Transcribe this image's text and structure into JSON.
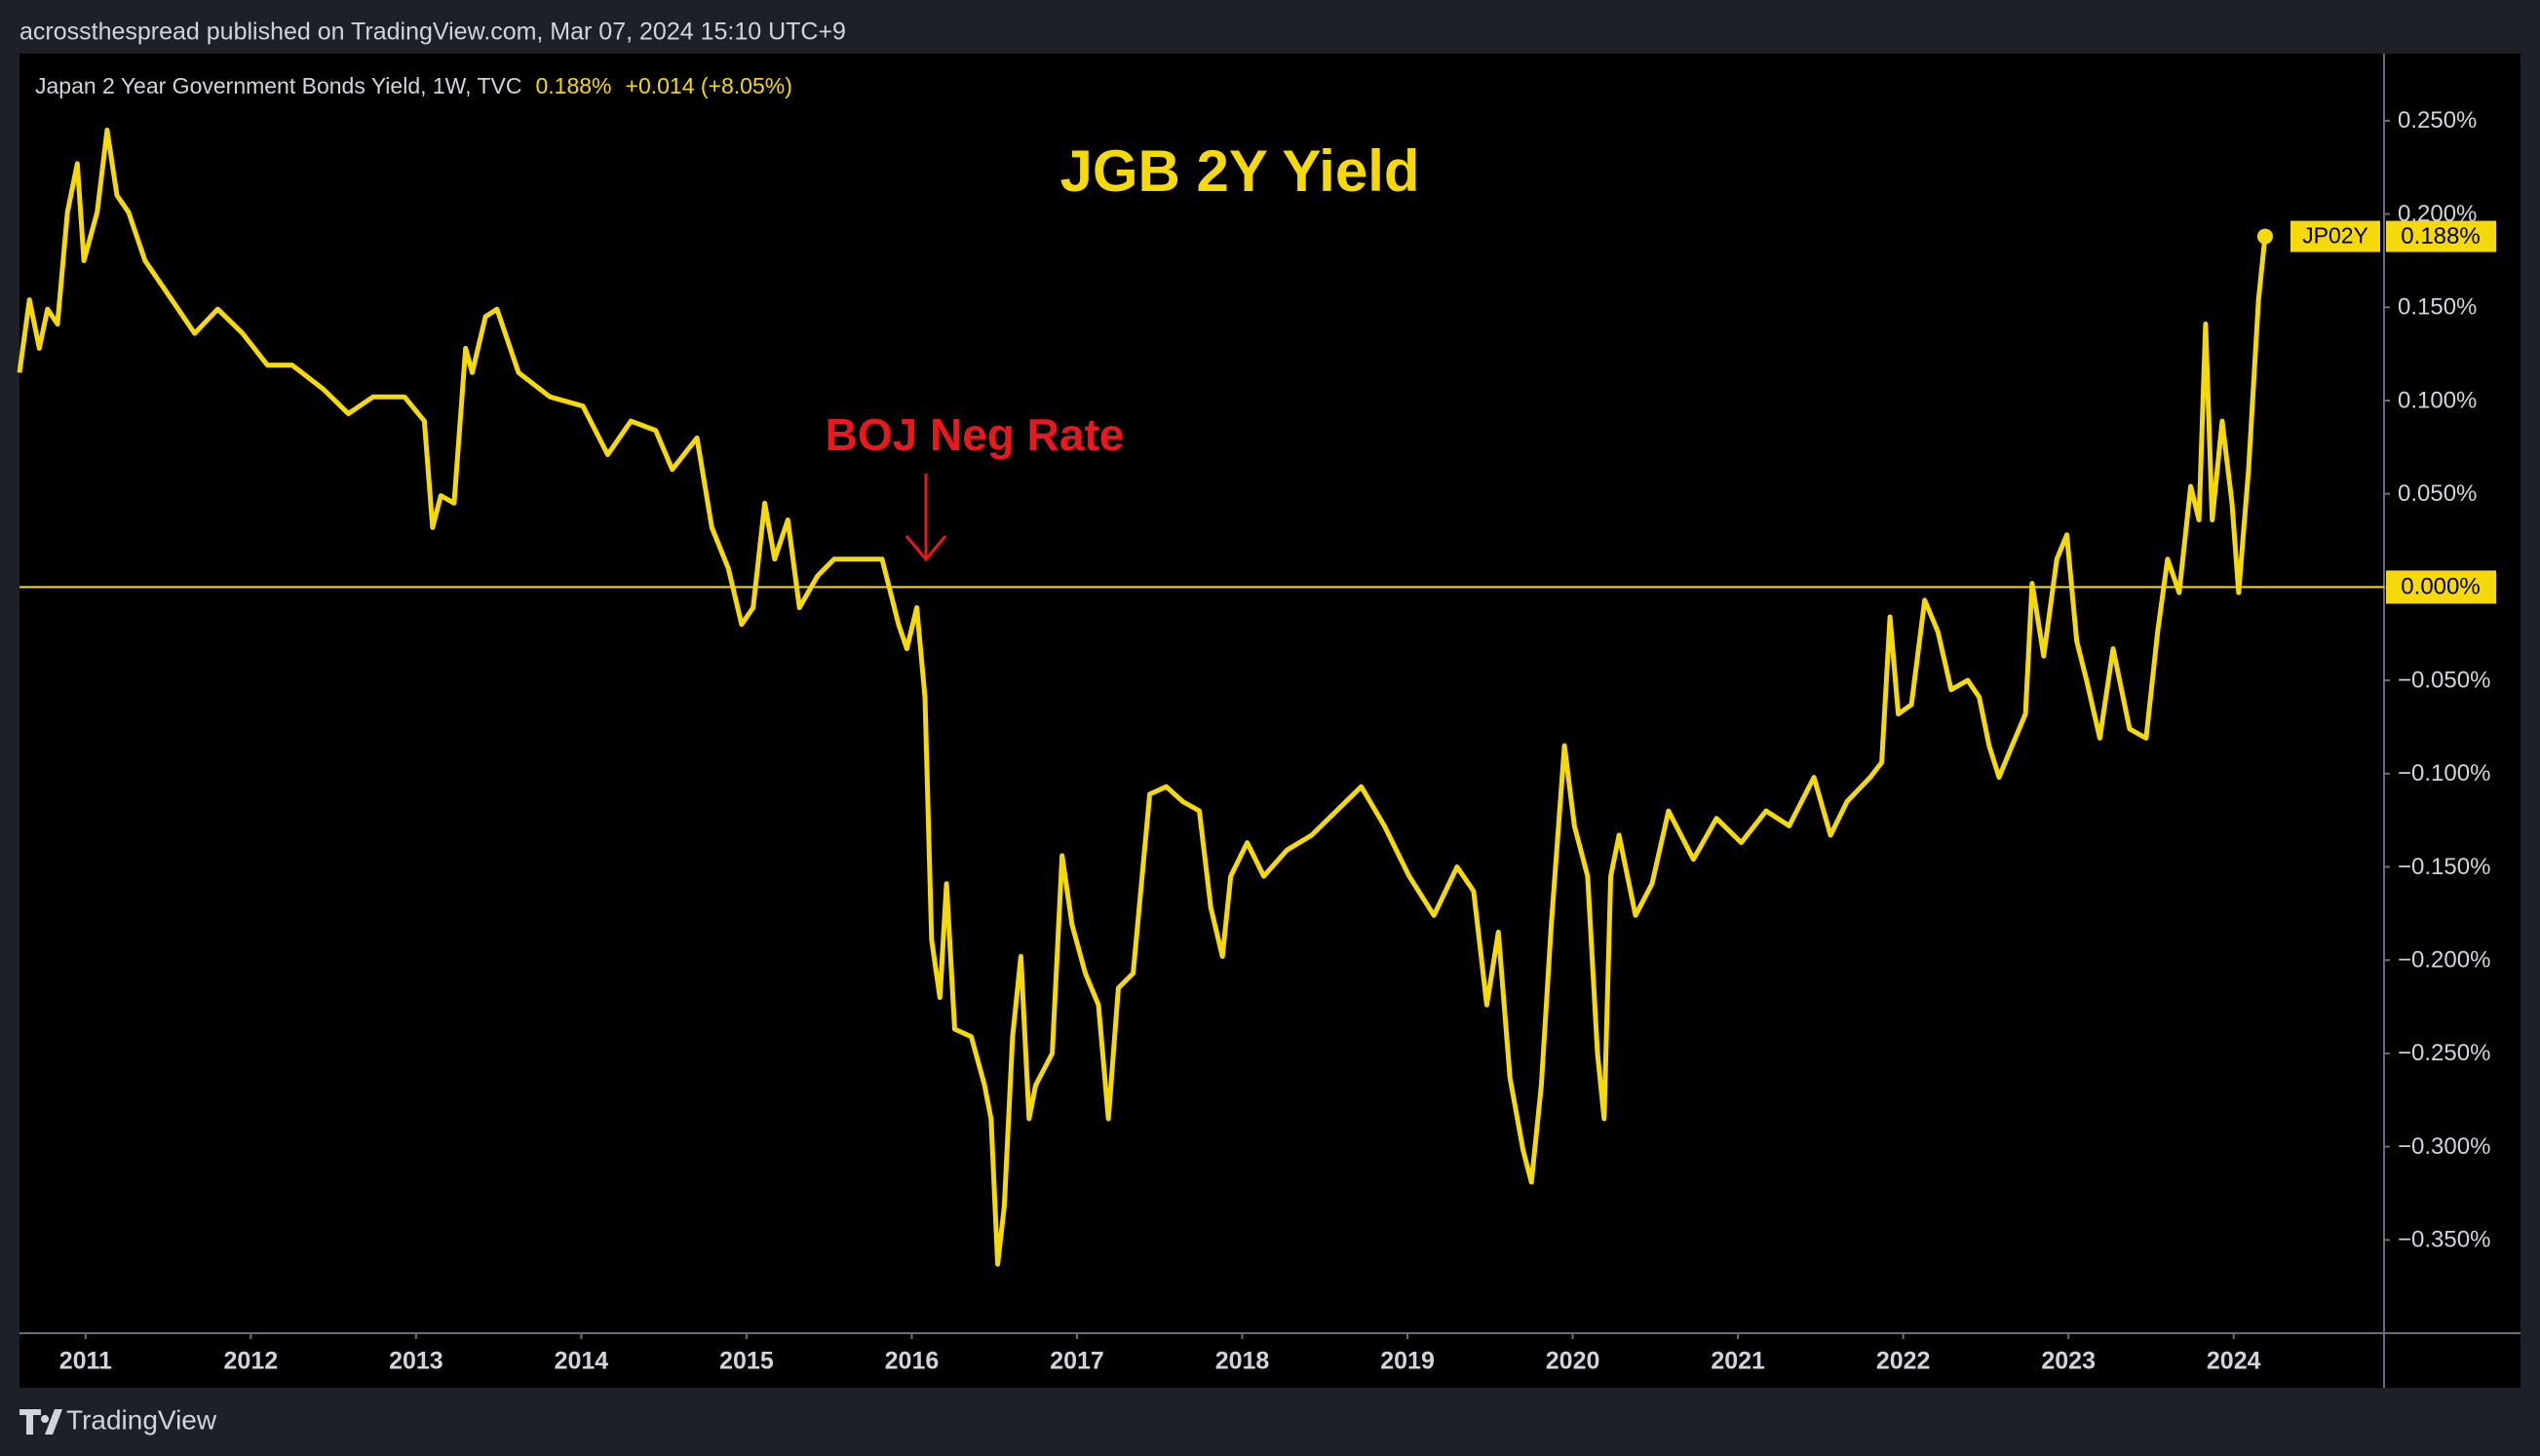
{
  "header": {
    "published": "acrossthespread published on TradingView.com, Mar 07, 2024 15:10 UTC+9",
    "brand": "TradingView"
  },
  "chart_data": {
    "type": "line",
    "title": "JGB 2Y Yield",
    "legend": {
      "name": "Japan 2 Year Government Bonds Yield, 1W, TVC",
      "last": "0.188%",
      "change": "+0.014 (+8.05%)"
    },
    "annotation": "BOJ Neg Rate",
    "price_label": {
      "symbol": "JP02Y",
      "value_label": "0.188%"
    },
    "color": "#f5d90a",
    "hline": 0,
    "x": [
      2010.6,
      2010.66,
      2010.72,
      2010.77,
      2010.83,
      2010.89,
      2010.95,
      2010.99,
      2011.07,
      2011.13,
      2011.19,
      2011.26,
      2011.36,
      2011.46,
      2011.56,
      2011.66,
      2011.8,
      2011.95,
      2012.1,
      2012.25,
      2012.44,
      2012.59,
      2012.74,
      2012.93,
      2013.05,
      2013.1,
      2013.15,
      2013.23,
      2013.3,
      2013.34,
      2013.42,
      2013.49,
      2013.62,
      2013.81,
      2014.01,
      2014.16,
      2014.3,
      2014.45,
      2014.55,
      2014.7,
      2014.79,
      2014.89,
      2014.97,
      2015.04,
      2015.11,
      2015.17,
      2015.25,
      2015.32,
      2015.43,
      2015.53,
      2015.68,
      2015.82,
      2015.92,
      2015.97,
      2016.03,
      2016.08,
      2016.12,
      2016.17,
      2016.21,
      2016.26,
      2016.36,
      2016.44,
      2016.48,
      2016.52,
      2016.56,
      2016.61,
      2016.66,
      2016.71,
      2016.75,
      2016.85,
      2016.91,
      2016.97,
      2017.05,
      2017.13,
      2017.19,
      2017.25,
      2017.34,
      2017.44,
      2017.54,
      2017.64,
      2017.74,
      2017.81,
      2017.88,
      2017.93,
      2018.03,
      2018.13,
      2018.27,
      2018.42,
      2018.57,
      2018.72,
      2018.86,
      2019.01,
      2019.16,
      2019.3,
      2019.4,
      2019.48,
      2019.55,
      2019.62,
      2019.7,
      2019.75,
      2019.81,
      2019.87,
      2019.95,
      2020.01,
      2020.09,
      2020.15,
      2020.19,
      2020.23,
      2020.28,
      2020.38,
      2020.48,
      2020.58,
      2020.73,
      2020.87,
      2021.02,
      2021.17,
      2021.31,
      2021.46,
      2021.56,
      2021.66,
      2021.8,
      2021.87,
      2021.92,
      2021.97,
      2022.05,
      2022.13,
      2022.21,
      2022.29,
      2022.39,
      2022.46,
      2022.52,
      2022.58,
      2022.64,
      2022.74,
      2022.78,
      2022.85,
      2022.93,
      2022.99,
      2023.05,
      2023.11,
      2023.19,
      2023.27,
      2023.37,
      2023.47,
      2023.54,
      2023.6,
      2023.67,
      2023.74,
      2023.79,
      2023.83,
      2023.87,
      2023.93,
      2023.99,
      2024.03,
      2024.09,
      2024.15,
      2024.19
    ],
    "values": [
      0.115,
      0.154,
      0.128,
      0.149,
      0.141,
      0.201,
      0.227,
      0.175,
      0.201,
      0.245,
      0.21,
      0.201,
      0.175,
      0.162,
      0.149,
      0.136,
      0.149,
      0.136,
      0.119,
      0.119,
      0.106,
      0.093,
      0.102,
      0.102,
      0.089,
      0.032,
      0.049,
      0.045,
      0.128,
      0.115,
      0.145,
      0.149,
      0.115,
      0.102,
      0.097,
      0.071,
      0.089,
      0.084,
      0.063,
      0.08,
      0.032,
      0.01,
      -0.02,
      -0.011,
      0.045,
      0.015,
      0.036,
      -0.011,
      0.006,
      0.015,
      0.015,
      0.015,
      -0.02,
      -0.033,
      -0.011,
      -0.059,
      -0.189,
      -0.22,
      -0.159,
      -0.237,
      -0.241,
      -0.267,
      -0.285,
      -0.363,
      -0.332,
      -0.241,
      -0.198,
      -0.285,
      -0.267,
      -0.25,
      -0.144,
      -0.181,
      -0.207,
      -0.224,
      -0.285,
      -0.215,
      -0.207,
      -0.111,
      -0.107,
      -0.115,
      -0.12,
      -0.172,
      -0.198,
      -0.155,
      -0.137,
      -0.155,
      -0.141,
      -0.133,
      -0.12,
      -0.107,
      -0.128,
      -0.155,
      -0.176,
      -0.15,
      -0.163,
      -0.224,
      -0.185,
      -0.263,
      -0.302,
      -0.319,
      -0.267,
      -0.181,
      -0.085,
      -0.128,
      -0.155,
      -0.25,
      -0.285,
      -0.155,
      -0.133,
      -0.176,
      -0.159,
      -0.12,
      -0.146,
      -0.124,
      -0.137,
      -0.12,
      -0.128,
      -0.102,
      -0.133,
      -0.115,
      -0.102,
      -0.094,
      -0.016,
      -0.068,
      -0.063,
      -0.007,
      -0.024,
      -0.055,
      -0.05,
      -0.059,
      -0.085,
      -0.102,
      -0.089,
      -0.068,
      0.002,
      -0.037,
      0.015,
      0.028,
      -0.029,
      -0.05,
      -0.081,
      -0.033,
      -0.076,
      -0.081,
      -0.024,
      0.015,
      -0.003,
      0.054,
      0.036,
      0.141,
      0.036,
      0.089,
      0.045,
      -0.003,
      0.063,
      0.154,
      0.188
    ],
    "xlim": [
      2010.6,
      2024.91
    ],
    "xticks": [
      2011,
      2012,
      2013,
      2014,
      2015,
      2016,
      2017,
      2018,
      2019,
      2020,
      2021,
      2022,
      2023,
      2024
    ],
    "ylim": [
      -0.4,
      0.286
    ],
    "yticks": [
      {
        "value": -0.35,
        "label": "−0.350%"
      },
      {
        "value": -0.3,
        "label": "−0.300%"
      },
      {
        "value": -0.25,
        "label": "−0.250%"
      },
      {
        "value": -0.2,
        "label": "−0.200%"
      },
      {
        "value": -0.15,
        "label": "−0.150%"
      },
      {
        "value": -0.1,
        "label": "−0.100%"
      },
      {
        "value": -0.05,
        "label": "−0.050%"
      },
      {
        "value": 0,
        "label": "0.000%"
      },
      {
        "value": 0.05,
        "label": "0.050%"
      },
      {
        "value": 0.1,
        "label": "0.100%"
      },
      {
        "value": 0.15,
        "label": "0.150%"
      },
      {
        "value": 0.2,
        "label": "0.200%"
      },
      {
        "value": 0.25,
        "label": "0.250%"
      }
    ]
  }
}
